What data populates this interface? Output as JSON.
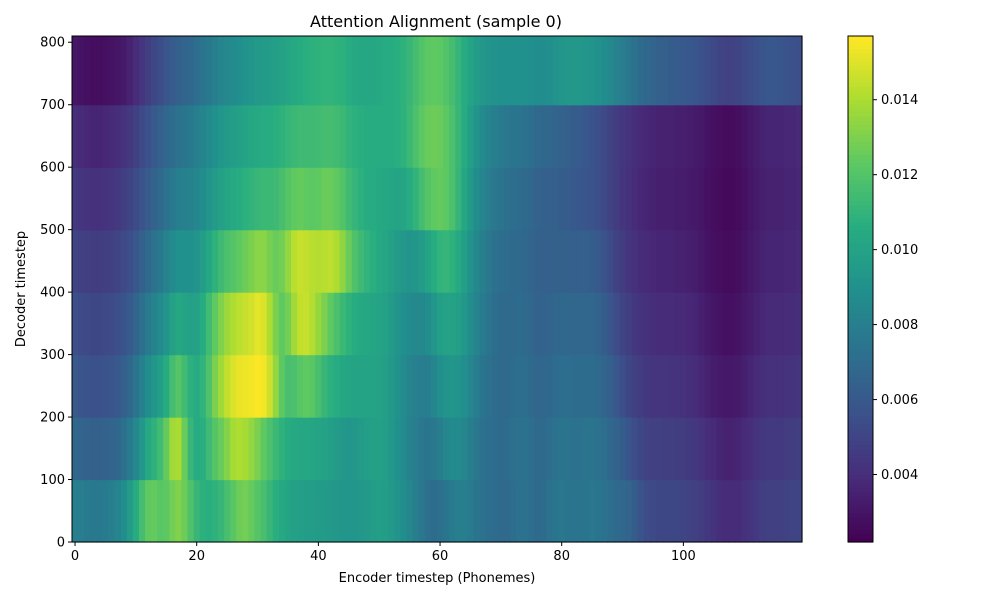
{
  "chart_data": {
    "type": "heatmap",
    "title": "Attention Alignment (sample 0)",
    "xlabel": "Encoder timestep (Phonemes)",
    "ylabel": "Decoder timestep",
    "xlim": [
      -0.5,
      119.5
    ],
    "ylim": [
      0,
      810
    ],
    "xticks": [
      0,
      20,
      40,
      60,
      80,
      100
    ],
    "yticks": [
      0,
      100,
      200,
      300,
      400,
      500,
      600,
      700,
      800
    ],
    "colormap": "viridis",
    "colorbar": {
      "vmin": 0.0022,
      "vmax": 0.0157,
      "ticks": [
        "0.004",
        "0.006",
        "0.008",
        "0.010",
        "0.012",
        "0.014"
      ]
    },
    "n_encoder_steps": 120,
    "n_decoder_steps": 810,
    "row_blocks": [
      0,
      100,
      200,
      300,
      400,
      500,
      600,
      700,
      810
    ],
    "values": [
      [
        0.008,
        0.0079,
        0.0078,
        0.0077,
        0.0077,
        0.0078,
        0.008,
        0.0083,
        0.0088,
        0.0096,
        0.0106,
        0.0116,
        0.0124,
        0.0125,
        0.0122,
        0.0123,
        0.0128,
        0.0131,
        0.0127,
        0.0119,
        0.0112,
        0.0108,
        0.0107,
        0.0109,
        0.0112,
        0.0117,
        0.0122,
        0.0127,
        0.0128,
        0.0125,
        0.0121,
        0.0117,
        0.0112,
        0.0107,
        0.0104,
        0.0101,
        0.0099,
        0.0098,
        0.0097,
        0.0097,
        0.0096,
        0.0096,
        0.0095,
        0.0094,
        0.0093,
        0.0093,
        0.0093,
        0.0094,
        0.0095,
        0.0097,
        0.0098,
        0.0097,
        0.0095,
        0.0092,
        0.0088,
        0.0084,
        0.008,
        0.0076,
        0.0072,
        0.007,
        0.0072,
        0.0075,
        0.0078,
        0.008,
        0.008,
        0.0078,
        0.0075,
        0.0073,
        0.0071,
        0.007,
        0.0069,
        0.0069,
        0.0071,
        0.0073,
        0.0073,
        0.0071,
        0.0069,
        0.007,
        0.0073,
        0.0075,
        0.0076,
        0.0075,
        0.0074,
        0.0074,
        0.0075,
        0.0076,
        0.0075,
        0.0073,
        0.0071,
        0.0069,
        0.0068,
        0.0066,
        0.0062,
        0.0057,
        0.0054,
        0.0052,
        0.0051,
        0.0051,
        0.0051,
        0.0051,
        0.005,
        0.0049,
        0.0048,
        0.0046,
        0.0044,
        0.0042,
        0.004,
        0.0039,
        0.0039,
        0.0039,
        0.0041,
        0.0043,
        0.0045,
        0.0047,
        0.0048,
        0.0048,
        0.0048,
        0.0049,
        0.005,
        0.005
      ],
      [
        0.0068,
        0.0066,
        0.0065,
        0.0064,
        0.0064,
        0.0065,
        0.0066,
        0.0068,
        0.0072,
        0.0078,
        0.0085,
        0.0094,
        0.0104,
        0.0109,
        0.0115,
        0.0125,
        0.0138,
        0.014,
        0.0126,
        0.0112,
        0.0105,
        0.0107,
        0.0114,
        0.0121,
        0.0126,
        0.0132,
        0.0139,
        0.0141,
        0.0139,
        0.0135,
        0.013,
        0.0124,
        0.0118,
        0.0113,
        0.0109,
        0.0106,
        0.0104,
        0.0103,
        0.0103,
        0.0102,
        0.0101,
        0.01,
        0.0098,
        0.0096,
        0.0094,
        0.0093,
        0.0094,
        0.0096,
        0.0098,
        0.0099,
        0.0099,
        0.0097,
        0.0094,
        0.009,
        0.0086,
        0.0082,
        0.0079,
        0.0076,
        0.0075,
        0.0076,
        0.008,
        0.0084,
        0.0086,
        0.0086,
        0.0084,
        0.008,
        0.0076,
        0.0073,
        0.0071,
        0.007,
        0.0069,
        0.007,
        0.0072,
        0.0073,
        0.0073,
        0.0071,
        0.0069,
        0.0069,
        0.0071,
        0.0073,
        0.0074,
        0.0074,
        0.0073,
        0.0073,
        0.0074,
        0.0074,
        0.0073,
        0.0071,
        0.0068,
        0.0065,
        0.0062,
        0.0058,
        0.0054,
        0.0051,
        0.0049,
        0.0048,
        0.0048,
        0.0047,
        0.0047,
        0.0046,
        0.0046,
        0.0045,
        0.0044,
        0.0042,
        0.004,
        0.0038,
        0.0036,
        0.0035,
        0.0035,
        0.0036,
        0.0038,
        0.004,
        0.0042,
        0.0044,
        0.0045,
        0.0045,
        0.0045,
        0.0046,
        0.0046,
        0.0047
      ],
      [
        0.006,
        0.0058,
        0.0057,
        0.0056,
        0.0056,
        0.0057,
        0.0058,
        0.006,
        0.0063,
        0.0068,
        0.0074,
        0.0081,
        0.0088,
        0.0093,
        0.0098,
        0.0106,
        0.0116,
        0.0121,
        0.0115,
        0.0108,
        0.0105,
        0.011,
        0.0119,
        0.013,
        0.0138,
        0.0145,
        0.015,
        0.0153,
        0.0154,
        0.0155,
        0.0157,
        0.0155,
        0.0147,
        0.0135,
        0.0123,
        0.0117,
        0.0118,
        0.0122,
        0.0124,
        0.0122,
        0.0117,
        0.0112,
        0.0108,
        0.0105,
        0.0103,
        0.0102,
        0.0101,
        0.0101,
        0.0101,
        0.0101,
        0.01,
        0.0098,
        0.0095,
        0.0091,
        0.0087,
        0.0083,
        0.0081,
        0.0079,
        0.008,
        0.0084,
        0.0089,
        0.0092,
        0.0093,
        0.0092,
        0.0089,
        0.0084,
        0.0079,
        0.0075,
        0.0072,
        0.007,
        0.0069,
        0.0069,
        0.007,
        0.0071,
        0.0071,
        0.0069,
        0.0067,
        0.0067,
        0.0068,
        0.007,
        0.0071,
        0.0071,
        0.007,
        0.007,
        0.007,
        0.007,
        0.0069,
        0.0066,
        0.0063,
        0.0059,
        0.0055,
        0.0051,
        0.0048,
        0.0046,
        0.0044,
        0.0043,
        0.0043,
        0.0043,
        0.0042,
        0.0042,
        0.0041,
        0.004,
        0.0039,
        0.0037,
        0.0035,
        0.0033,
        0.0032,
        0.0031,
        0.0031,
        0.0032,
        0.0034,
        0.0036,
        0.0038,
        0.004,
        0.0041,
        0.0041,
        0.0041,
        0.0042,
        0.0042,
        0.0043
      ],
      [
        0.0055,
        0.0053,
        0.0052,
        0.0051,
        0.0051,
        0.0052,
        0.0053,
        0.0055,
        0.0057,
        0.0061,
        0.0066,
        0.0072,
        0.0078,
        0.0082,
        0.0086,
        0.0092,
        0.0099,
        0.0103,
        0.0101,
        0.0099,
        0.01,
        0.0106,
        0.0115,
        0.0124,
        0.0131,
        0.0137,
        0.0141,
        0.0144,
        0.0146,
        0.0148,
        0.0152,
        0.015,
        0.0141,
        0.013,
        0.0124,
        0.0128,
        0.0138,
        0.0145,
        0.0146,
        0.0142,
        0.0136,
        0.013,
        0.0124,
        0.0118,
        0.0113,
        0.0109,
        0.0106,
        0.0104,
        0.0103,
        0.0102,
        0.0101,
        0.0099,
        0.0096,
        0.0092,
        0.0089,
        0.0086,
        0.0085,
        0.0085,
        0.0088,
        0.0093,
        0.0098,
        0.01,
        0.01,
        0.0098,
        0.0094,
        0.0088,
        0.0083,
        0.0078,
        0.0074,
        0.0071,
        0.0069,
        0.0069,
        0.0069,
        0.007,
        0.0069,
        0.0067,
        0.0065,
        0.0065,
        0.0066,
        0.0067,
        0.0068,
        0.0068,
        0.0067,
        0.0067,
        0.0067,
        0.0067,
        0.0065,
        0.0062,
        0.0058,
        0.0054,
        0.005,
        0.0047,
        0.0044,
        0.0042,
        0.0041,
        0.004,
        0.0039,
        0.0039,
        0.0039,
        0.0038,
        0.0038,
        0.0037,
        0.0036,
        0.0034,
        0.0032,
        0.003,
        0.0029,
        0.0028,
        0.0028,
        0.0029,
        0.0031,
        0.0033,
        0.0035,
        0.0037,
        0.0038,
        0.0038,
        0.0038,
        0.0039,
        0.0039,
        0.004
      ],
      [
        0.005,
        0.0048,
        0.0047,
        0.0046,
        0.0046,
        0.0047,
        0.0048,
        0.005,
        0.0052,
        0.0055,
        0.0059,
        0.0064,
        0.0069,
        0.0073,
        0.0077,
        0.0082,
        0.0087,
        0.009,
        0.009,
        0.009,
        0.0092,
        0.0097,
        0.0103,
        0.0109,
        0.0114,
        0.0118,
        0.0121,
        0.0124,
        0.0127,
        0.013,
        0.0133,
        0.0133,
        0.0129,
        0.0126,
        0.0128,
        0.0135,
        0.0143,
        0.0146,
        0.0145,
        0.0143,
        0.0142,
        0.0143,
        0.0144,
        0.0141,
        0.0134,
        0.0126,
        0.0119,
        0.0114,
        0.011,
        0.0107,
        0.0104,
        0.0102,
        0.0099,
        0.0096,
        0.0094,
        0.0092,
        0.0093,
        0.0096,
        0.0101,
        0.0106,
        0.011,
        0.0111,
        0.0109,
        0.0104,
        0.0098,
        0.0091,
        0.0085,
        0.008,
        0.0076,
        0.0073,
        0.0071,
        0.007,
        0.0069,
        0.0069,
        0.0068,
        0.0066,
        0.0064,
        0.0063,
        0.0063,
        0.0064,
        0.0064,
        0.0064,
        0.0063,
        0.0063,
        0.0063,
        0.0062,
        0.006,
        0.0057,
        0.0053,
        0.0049,
        0.0046,
        0.0043,
        0.0041,
        0.0039,
        0.0038,
        0.0037,
        0.0036,
        0.0036,
        0.0036,
        0.0035,
        0.0035,
        0.0034,
        0.0033,
        0.0031,
        0.0029,
        0.0028,
        0.0027,
        0.0026,
        0.0026,
        0.0027,
        0.0029,
        0.0031,
        0.0033,
        0.0035,
        0.0036,
        0.0036,
        0.0036,
        0.0037,
        0.0037,
        0.0038
      ],
      [
        0.0045,
        0.0043,
        0.0042,
        0.0041,
        0.0041,
        0.0042,
        0.0043,
        0.0045,
        0.0047,
        0.005,
        0.0053,
        0.0057,
        0.0061,
        0.0065,
        0.0069,
        0.0073,
        0.0077,
        0.008,
        0.0081,
        0.0082,
        0.0084,
        0.0088,
        0.0092,
        0.0096,
        0.0099,
        0.0102,
        0.0104,
        0.0106,
        0.0108,
        0.011,
        0.0112,
        0.0113,
        0.0113,
        0.0114,
        0.0117,
        0.0121,
        0.0124,
        0.0125,
        0.0124,
        0.0123,
        0.0124,
        0.0126,
        0.0126,
        0.0124,
        0.012,
        0.0115,
        0.0111,
        0.0108,
        0.0106,
        0.0105,
        0.0104,
        0.0103,
        0.0102,
        0.0101,
        0.0102,
        0.0105,
        0.011,
        0.0116,
        0.0121,
        0.0124,
        0.0125,
        0.0123,
        0.0118,
        0.0111,
        0.0103,
        0.0095,
        0.0088,
        0.0083,
        0.0079,
        0.0076,
        0.0074,
        0.0072,
        0.0071,
        0.007,
        0.0069,
        0.0067,
        0.0065,
        0.0064,
        0.0063,
        0.0063,
        0.0062,
        0.0061,
        0.006,
        0.0059,
        0.0058,
        0.0057,
        0.0055,
        0.0052,
        0.0049,
        0.0046,
        0.0043,
        0.0041,
        0.0039,
        0.0037,
        0.0036,
        0.0035,
        0.0034,
        0.0034,
        0.0034,
        0.0033,
        0.0033,
        0.0032,
        0.0031,
        0.003,
        0.0028,
        0.0027,
        0.0026,
        0.0025,
        0.0025,
        0.0026,
        0.0028,
        0.003,
        0.0032,
        0.0034,
        0.0035,
        0.0035,
        0.0035,
        0.0036,
        0.0036,
        0.0037
      ],
      [
        0.004,
        0.0038,
        0.0037,
        0.0036,
        0.0036,
        0.0037,
        0.0038,
        0.004,
        0.0042,
        0.0045,
        0.0048,
        0.0052,
        0.0056,
        0.006,
        0.0063,
        0.0067,
        0.007,
        0.0073,
        0.0075,
        0.0077,
        0.008,
        0.0083,
        0.0087,
        0.009,
        0.0093,
        0.0095,
        0.0097,
        0.0099,
        0.0101,
        0.0103,
        0.0104,
        0.0105,
        0.0106,
        0.0107,
        0.0109,
        0.0111,
        0.0113,
        0.0114,
        0.0114,
        0.0114,
        0.0115,
        0.0116,
        0.0116,
        0.0115,
        0.0113,
        0.011,
        0.0108,
        0.0107,
        0.0106,
        0.0106,
        0.0106,
        0.0106,
        0.0106,
        0.0107,
        0.0109,
        0.0113,
        0.0118,
        0.0123,
        0.0126,
        0.0127,
        0.0126,
        0.0123,
        0.0118,
        0.0112,
        0.0105,
        0.0098,
        0.0092,
        0.0087,
        0.0083,
        0.008,
        0.0078,
        0.0076,
        0.0075,
        0.0074,
        0.0073,
        0.0071,
        0.0069,
        0.0068,
        0.0067,
        0.0066,
        0.0065,
        0.0063,
        0.0062,
        0.0061,
        0.0059,
        0.0057,
        0.0055,
        0.0052,
        0.0049,
        0.0046,
        0.0044,
        0.0042,
        0.004,
        0.0038,
        0.0037,
        0.0036,
        0.0035,
        0.0035,
        0.0035,
        0.0034,
        0.0034,
        0.0033,
        0.0032,
        0.0031,
        0.0029,
        0.0028,
        0.0027,
        0.0026,
        0.0026,
        0.0027,
        0.0029,
        0.0031,
        0.0033,
        0.0035,
        0.0036,
        0.0036,
        0.0036,
        0.0037,
        0.0037,
        0.0038
      ],
      [
        0.003,
        0.0029,
        0.0028,
        0.0027,
        0.0027,
        0.0028,
        0.0029,
        0.003,
        0.0032,
        0.0035,
        0.0039,
        0.0043,
        0.0047,
        0.0051,
        0.0054,
        0.0058,
        0.0061,
        0.0064,
        0.0066,
        0.0068,
        0.0071,
        0.0074,
        0.0077,
        0.008,
        0.0083,
        0.0085,
        0.0087,
        0.0089,
        0.0091,
        0.0093,
        0.0095,
        0.0096,
        0.0097,
        0.0098,
        0.01,
        0.0102,
        0.0104,
        0.0106,
        0.0107,
        0.0108,
        0.0109,
        0.011,
        0.011,
        0.0109,
        0.0108,
        0.0106,
        0.0104,
        0.0103,
        0.0103,
        0.0103,
        0.0104,
        0.0105,
        0.0106,
        0.0107,
        0.0109,
        0.0112,
        0.0116,
        0.012,
        0.0123,
        0.0124,
        0.0123,
        0.012,
        0.0116,
        0.0111,
        0.0106,
        0.0101,
        0.0097,
        0.0094,
        0.0092,
        0.0091,
        0.009,
        0.009,
        0.009,
        0.009,
        0.009,
        0.0089,
        0.0088,
        0.0088,
        0.0089,
        0.0091,
        0.0093,
        0.0094,
        0.0094,
        0.0094,
        0.0093,
        0.0092,
        0.009,
        0.0088,
        0.0085,
        0.0082,
        0.0079,
        0.0076,
        0.0073,
        0.007,
        0.0068,
        0.0066,
        0.0064,
        0.0063,
        0.0062,
        0.0061,
        0.006,
        0.0059,
        0.0058,
        0.0056,
        0.0054,
        0.0052,
        0.005,
        0.0049,
        0.0049,
        0.005,
        0.0052,
        0.0054,
        0.0056,
        0.0058,
        0.0059,
        0.0059,
        0.0058,
        0.0057,
        0.0056,
        0.0055
      ]
    ]
  }
}
